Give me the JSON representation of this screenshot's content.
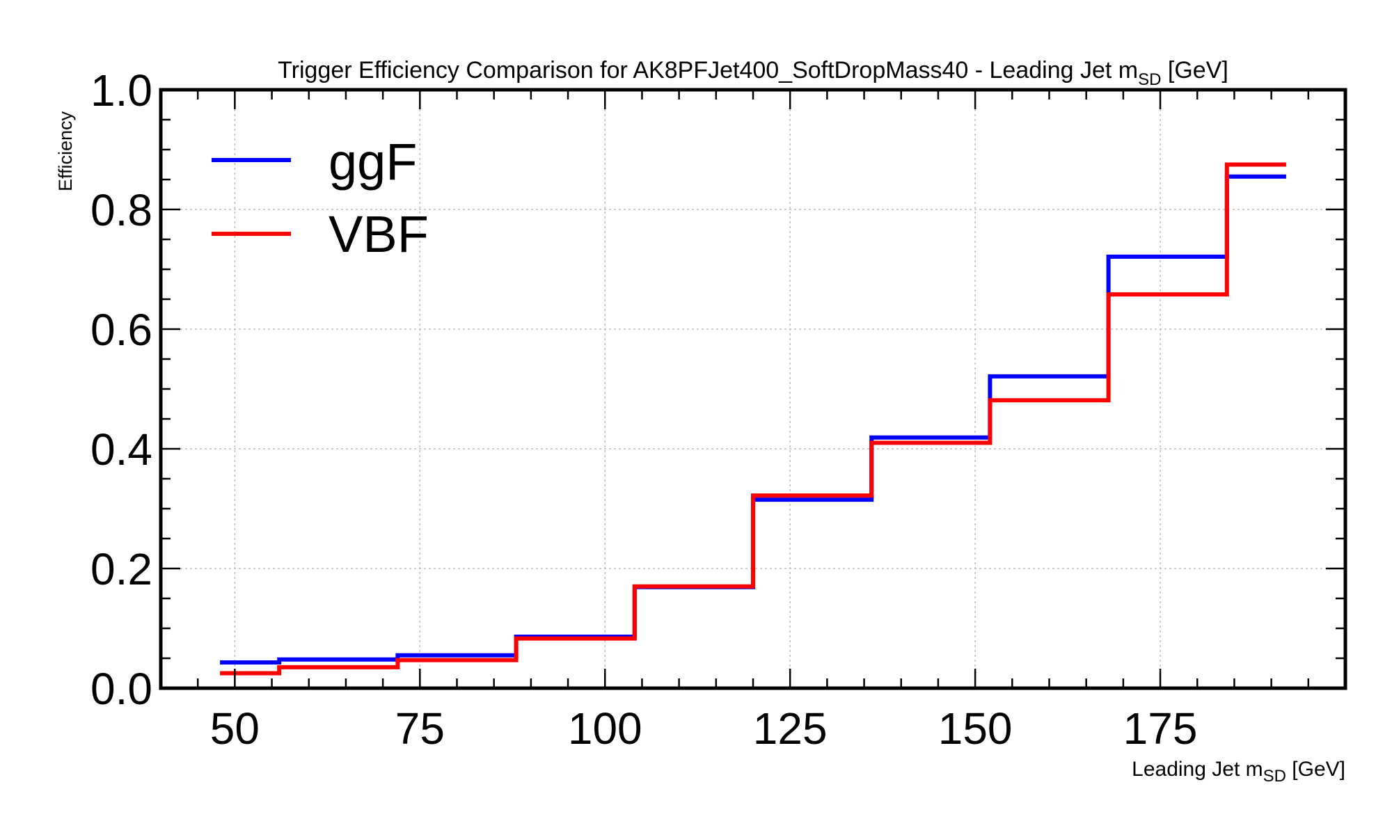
{
  "chart_data": {
    "type": "line",
    "drawstyle": "steps",
    "title": "Trigger Efficiency Comparison for AK8PFJet400_SoftDropMass40 - Leading Jet m",
    "title_sub": "SD",
    "title_suffix": " [GeV]",
    "xlabel": "Leading Jet m",
    "xlabel_sub": "SD",
    "xlabel_suffix": " [GeV]",
    "ylabel": "Efficiency",
    "xlim": [
      40,
      200
    ],
    "ylim": [
      0.0,
      1.0
    ],
    "x_ticks": [
      50,
      75,
      100,
      125,
      150,
      175
    ],
    "x_tick_labels": [
      "50",
      "75",
      "100",
      "125",
      "150",
      "175"
    ],
    "y_ticks": [
      0.0,
      0.2,
      0.4,
      0.6,
      0.8,
      1.0
    ],
    "y_tick_labels": [
      "0.0",
      "0.2",
      "0.4",
      "0.6",
      "0.8",
      "1.0"
    ],
    "grid": true,
    "legend_position": "top-left",
    "bin_edges": [
      48,
      56,
      72,
      88,
      104,
      120,
      136,
      152,
      168,
      184,
      192
    ],
    "series": [
      {
        "name": "ggF",
        "color": "#0000ff",
        "values": [
          0.043,
          0.048,
          0.055,
          0.086,
          0.169,
          0.315,
          0.419,
          0.521,
          0.721,
          0.855
        ]
      },
      {
        "name": "VBF",
        "color": "#ff0000",
        "values": [
          0.025,
          0.035,
          0.047,
          0.083,
          0.17,
          0.322,
          0.41,
          0.481,
          0.658,
          0.875
        ]
      }
    ]
  }
}
